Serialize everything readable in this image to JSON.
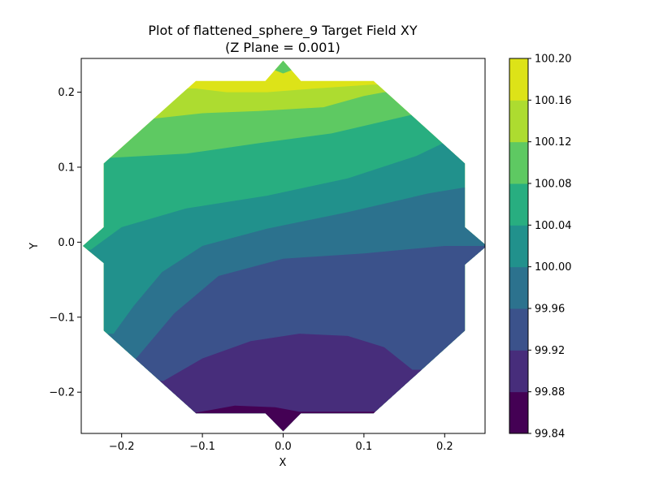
{
  "chart_data": {
    "type": "contour",
    "title_line1": "Plot of flattened_sphere_9 Target Field XY",
    "title_line2": "(Z Plane = 0.001)",
    "xlabel": "X",
    "ylabel": "Y",
    "xlim": [
      -0.25,
      0.25
    ],
    "ylim": [
      -0.255,
      0.245
    ],
    "x_ticks": [
      -0.2,
      -0.1,
      0.0,
      0.1,
      0.2
    ],
    "x_tick_labels": [
      "−0.2",
      "−0.1",
      "0.0",
      "0.1",
      "0.2"
    ],
    "y_ticks": [
      -0.2,
      -0.1,
      0.0,
      0.1,
      0.2
    ],
    "y_tick_labels": [
      "−0.2",
      "−0.1",
      "0.0",
      "0.1",
      "0.2"
    ],
    "colorbar_levels": [
      99.84,
      99.88,
      99.92,
      99.96,
      100.0,
      100.04,
      100.08,
      100.12,
      100.16,
      100.2
    ],
    "colorbar_labels": [
      "99.84",
      "99.88",
      "99.92",
      "99.96",
      "100.00",
      "100.04",
      "100.08",
      "100.12",
      "100.16",
      "100.20"
    ],
    "colorbar_colors": [
      "#440154",
      "#472d7b",
      "#3b528b",
      "#2c728e",
      "#21918c",
      "#28ae80",
      "#5ec962",
      "#addc30",
      "#dde318"
    ],
    "bands": [
      {
        "low": 99.84,
        "high": 99.88,
        "color": "#440154"
      },
      {
        "low": 99.88,
        "high": 99.92,
        "color": "#472d7b"
      },
      {
        "low": 99.92,
        "high": 99.96,
        "color": "#3b528b"
      },
      {
        "low": 99.96,
        "high": 100.0,
        "color": "#2c728e"
      },
      {
        "low": 100.0,
        "high": 100.04,
        "color": "#21918c"
      },
      {
        "low": 100.04,
        "high": 100.08,
        "color": "#28ae80"
      },
      {
        "low": 100.08,
        "high": 100.12,
        "color": "#5ec962"
      },
      {
        "low": 100.12,
        "high": 100.16,
        "color": "#addc30"
      },
      {
        "low": 100.16,
        "high": 100.2,
        "color": "#dde318"
      }
    ],
    "region_outline": [
      [
        -0.108,
        0.215
      ],
      [
        -0.022,
        0.215
      ],
      [
        0.0,
        0.242
      ],
      [
        0.022,
        0.215
      ],
      [
        0.112,
        0.215
      ],
      [
        0.225,
        0.105
      ],
      [
        0.225,
        0.02
      ],
      [
        0.252,
        -0.005
      ],
      [
        0.225,
        -0.03
      ],
      [
        0.225,
        -0.118
      ],
      [
        0.112,
        -0.228
      ],
      [
        0.022,
        -0.228
      ],
      [
        0.0,
        -0.252
      ],
      [
        -0.022,
        -0.228
      ],
      [
        -0.108,
        -0.228
      ],
      [
        -0.222,
        -0.118
      ],
      [
        -0.222,
        -0.028
      ],
      [
        -0.248,
        -0.005
      ],
      [
        -0.222,
        0.02
      ],
      [
        -0.222,
        0.105
      ]
    ],
    "contour_lines": [
      {
        "level": 99.88,
        "points": [
          [
            -0.112,
            -0.228
          ],
          [
            -0.06,
            -0.218
          ],
          [
            -0.01,
            -0.22
          ],
          [
            0.02,
            -0.226
          ]
        ]
      },
      {
        "level": 99.92,
        "points": [
          [
            -0.148,
            -0.185
          ],
          [
            -0.1,
            -0.155
          ],
          [
            -0.04,
            -0.132
          ],
          [
            0.02,
            -0.122
          ],
          [
            0.08,
            -0.125
          ],
          [
            0.125,
            -0.14
          ],
          [
            0.16,
            -0.17
          ]
        ]
      },
      {
        "level": 99.96,
        "points": [
          [
            -0.182,
            -0.155
          ],
          [
            -0.135,
            -0.095
          ],
          [
            -0.08,
            -0.045
          ],
          [
            0.0,
            -0.022
          ],
          [
            0.1,
            -0.015
          ],
          [
            0.2,
            -0.005
          ],
          [
            0.238,
            -0.005
          ]
        ]
      },
      {
        "level": 100.0,
        "points": [
          [
            -0.21,
            -0.122
          ],
          [
            -0.185,
            -0.085
          ],
          [
            -0.15,
            -0.04
          ],
          [
            -0.1,
            -0.005
          ],
          [
            -0.02,
            0.018
          ],
          [
            0.08,
            0.04
          ],
          [
            0.18,
            0.065
          ],
          [
            0.225,
            0.073
          ]
        ]
      },
      {
        "level": 100.04,
        "points": [
          [
            -0.238,
            -0.01
          ],
          [
            -0.2,
            0.02
          ],
          [
            -0.12,
            0.045
          ],
          [
            -0.02,
            0.062
          ],
          [
            0.08,
            0.085
          ],
          [
            0.165,
            0.115
          ],
          [
            0.198,
            0.132
          ]
        ]
      },
      {
        "level": 100.08,
        "points": [
          [
            -0.222,
            0.112
          ],
          [
            -0.12,
            0.118
          ],
          [
            -0.03,
            0.132
          ],
          [
            0.06,
            0.145
          ],
          [
            0.12,
            0.16
          ],
          [
            0.16,
            0.17
          ]
        ]
      },
      {
        "level": 100.12,
        "points": [
          [
            -0.158,
            0.165
          ],
          [
            -0.1,
            0.172
          ],
          [
            -0.03,
            0.175
          ],
          [
            0.05,
            0.18
          ],
          [
            0.1,
            0.195
          ],
          [
            0.125,
            0.2
          ]
        ]
      },
      {
        "level": 100.16,
        "points": [
          [
            -0.108,
            0.205
          ],
          [
            -0.07,
            0.2
          ],
          [
            -0.02,
            0.2
          ],
          [
            0.04,
            0.205
          ],
          [
            0.11,
            0.21
          ]
        ]
      },
      {
        "level": 100.12,
        "points": [
          [
            -0.012,
            0.23
          ],
          [
            0.0,
            0.225
          ],
          [
            0.012,
            0.23
          ]
        ]
      }
    ]
  }
}
